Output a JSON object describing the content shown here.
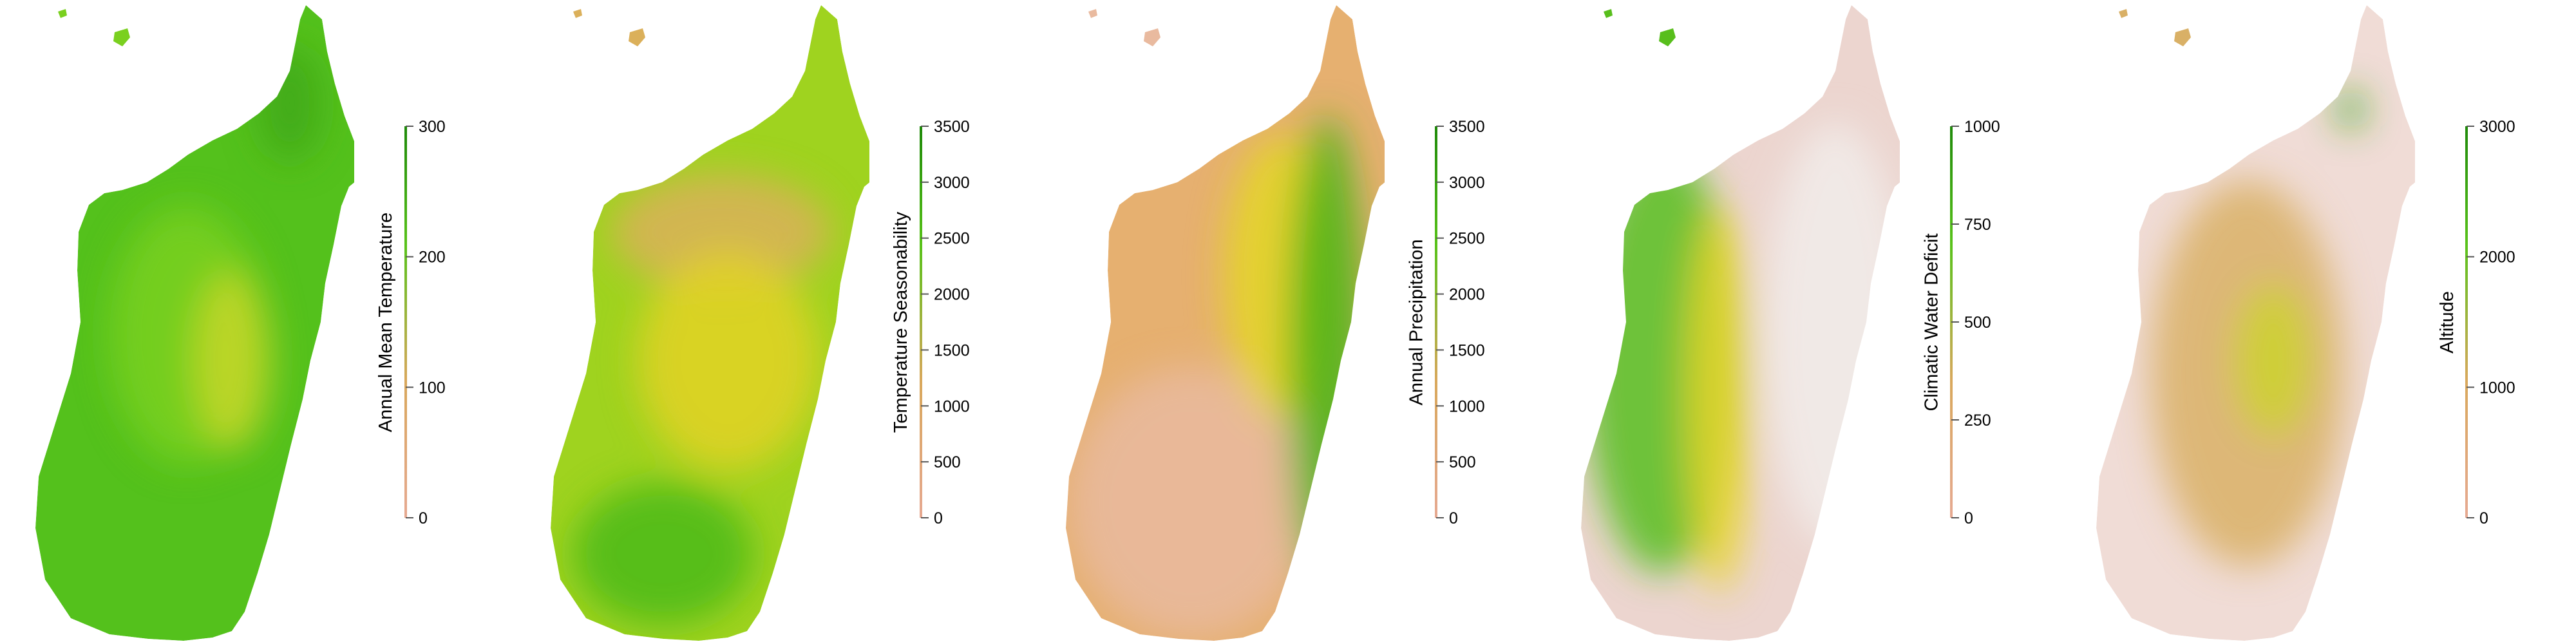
{
  "colors": {
    "low": "#e6a992",
    "mid": "#d9a85c",
    "green": "#58c21a",
    "dark_green": "#1f8a0a",
    "pale": "#efe6e4"
  },
  "panels": [
    {
      "id": "annual-mean-temperature",
      "legend": {
        "title": "Annual Mean Temperature",
        "ticks": [
          "0",
          "100",
          "200",
          "300"
        ],
        "min": 0,
        "max": 300
      },
      "map": {
        "base": "#54c11c",
        "accents": [
          "#7ad01f",
          "#c8d72c",
          "#3fa814"
        ]
      }
    },
    {
      "id": "temperature-seasonability",
      "legend": {
        "title": "Temperature Seasonability",
        "ticks": [
          "0",
          "500",
          "1000",
          "1500",
          "2000",
          "2500",
          "3000",
          "3500"
        ],
        "min": 0,
        "max": 3500
      },
      "map": {
        "base": "#9fd31f",
        "accents": [
          "#dbb05a",
          "#e3d225",
          "#4bba19"
        ]
      }
    },
    {
      "id": "annual-precipitation",
      "legend": {
        "title": "Annual Precipitation",
        "ticks": [
          "0",
          "500",
          "1000",
          "1500",
          "2000",
          "2500",
          "3000",
          "3500"
        ],
        "min": 0,
        "max": 3500
      },
      "map": {
        "base": "#e6b070",
        "accents": [
          "#e9ba9f",
          "#e4d624",
          "#49b418"
        ]
      }
    },
    {
      "id": "climatic-water-deficit",
      "legend": {
        "title": "Climatic Water Deficit",
        "ticks": [
          "0",
          "250",
          "500",
          "750",
          "1000"
        ],
        "min": 0,
        "max": 1000
      },
      "map": {
        "base": "#ecd5cf",
        "accents": [
          "#58be1c",
          "#e8d52a",
          "#f1ecea"
        ]
      }
    },
    {
      "id": "altitude",
      "legend": {
        "title": "Altitude",
        "ticks": [
          "0",
          "1000",
          "2000",
          "3000"
        ],
        "min": 0,
        "max": 3000
      },
      "map": {
        "base": "#f0dcd6",
        "accents": [
          "#d9b066",
          "#cdd22d",
          "#3aa814"
        ]
      }
    }
  ]
}
